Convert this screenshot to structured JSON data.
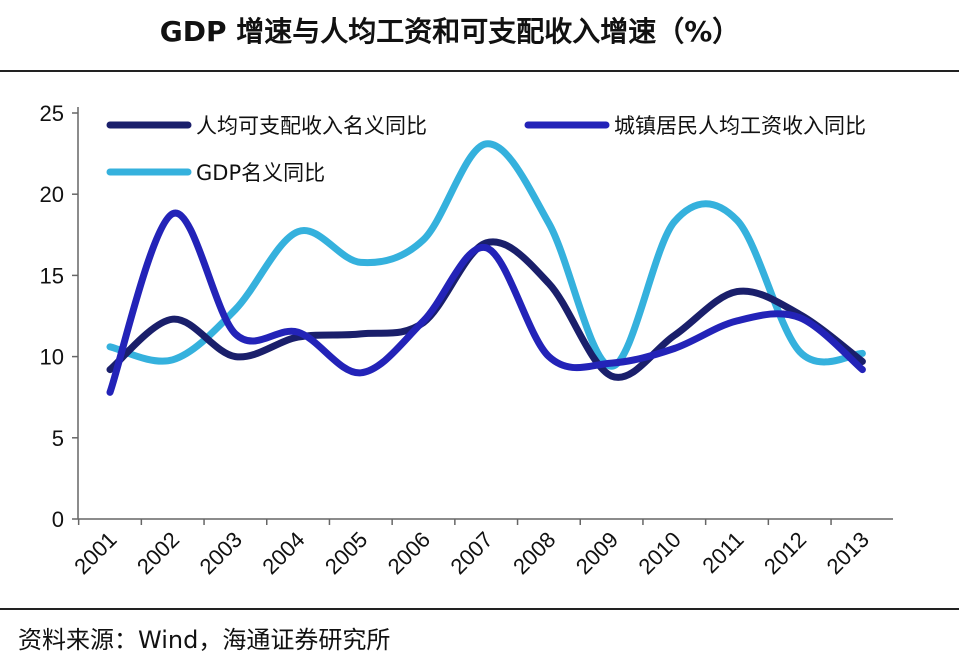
{
  "header": {
    "title": "GDP 增速与人均工资和可支配收入增速（%）"
  },
  "footer": {
    "source": "资料来源：Wind，海通证券研究所"
  },
  "chart_data": {
    "type": "line",
    "title": "GDP 增速与人均工资和可支配收入增速（%）",
    "xlabel": "",
    "ylabel": "",
    "ylim": [
      0,
      25
    ],
    "yticks": [
      0,
      5,
      10,
      15,
      20,
      25
    ],
    "categories": [
      "2001",
      "2002",
      "2003",
      "2004",
      "2005",
      "2006",
      "2007",
      "2008",
      "2009",
      "2010",
      "2011",
      "2012",
      "2013"
    ],
    "grid": false,
    "legend_position": "top",
    "series": [
      {
        "name": "人均可支配收入名义同比",
        "color": "#1a1f6b",
        "values": [
          9.2,
          12.3,
          10.0,
          11.2,
          11.4,
          12.1,
          17.0,
          14.5,
          8.8,
          11.3,
          14.0,
          12.6,
          9.7
        ]
      },
      {
        "name": "城镇居民人均工资收入同比",
        "color": "#2323b8",
        "values": [
          7.8,
          18.8,
          11.4,
          11.5,
          9.0,
          12.2,
          16.7,
          10.0,
          9.6,
          10.5,
          12.2,
          12.4,
          9.2
        ]
      },
      {
        "name": "GDP名义同比",
        "color": "#35b1dd",
        "values": [
          10.6,
          9.8,
          12.9,
          17.7,
          15.8,
          17.2,
          23.1,
          18.2,
          9.4,
          18.3,
          18.4,
          10.3,
          10.2
        ]
      }
    ]
  }
}
